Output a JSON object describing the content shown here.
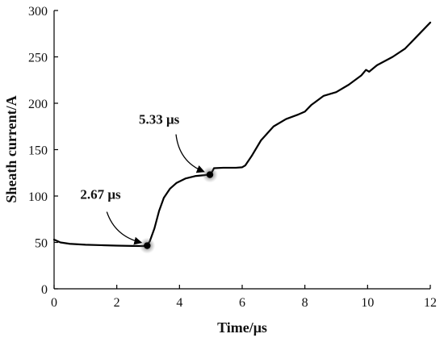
{
  "chart_data": {
    "type": "line",
    "title": "",
    "xlabel": "Time/μs",
    "ylabel": "Sheath current/A",
    "xlim": [
      0,
      12
    ],
    "ylim": [
      0,
      300
    ],
    "xticks": [
      "0",
      "2",
      "4",
      "6",
      "8",
      "10",
      "12"
    ],
    "yticks": [
      "0",
      "50",
      "100",
      "150",
      "200",
      "250",
      "300"
    ],
    "grid": false,
    "legend": "none",
    "line_color": "#000000",
    "series": [
      {
        "x": [
          0,
          0.2,
          0.5,
          1.0,
          1.5,
          2.0,
          2.5,
          2.85,
          2.95,
          3.05,
          3.2,
          3.35,
          3.5,
          3.7,
          3.9,
          4.2,
          4.5,
          4.8,
          5.0,
          5.1,
          5.4,
          5.8,
          6.0,
          6.1,
          6.3,
          6.6,
          7.0,
          7.4,
          7.8,
          8.0,
          8.2,
          8.6,
          9.0,
          9.4,
          9.8,
          9.95,
          10.05,
          10.3,
          10.8,
          11.2,
          11.6,
          12.0
        ],
        "y": [
          53,
          50,
          48.5,
          47.5,
          47,
          46.5,
          46.2,
          46.1,
          46.5,
          51,
          65,
          84,
          98,
          108,
          114,
          119,
          121.5,
          122.5,
          123.5,
          130,
          130.5,
          130.5,
          131,
          133,
          143,
          160,
          175,
          183,
          188,
          191,
          198,
          208,
          212,
          220,
          230,
          236,
          234,
          241,
          250,
          259,
          273,
          287
        ]
      }
    ],
    "annotations": [
      {
        "text": "2.67 μs",
        "x": 2.97,
        "y": 46.5,
        "color": "#000000"
      },
      {
        "text": "5.33 μs",
        "x": 4.97,
        "y": 123,
        "color": "#000000"
      }
    ]
  }
}
